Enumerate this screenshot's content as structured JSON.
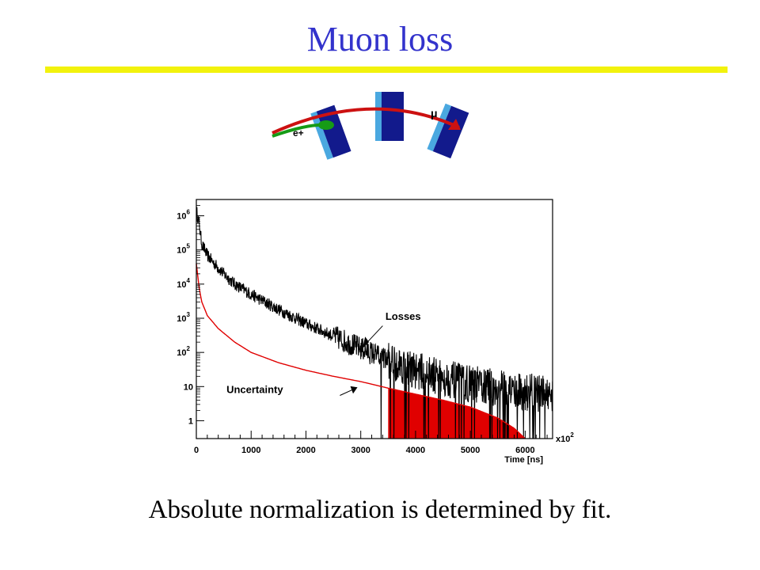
{
  "slide": {
    "title": "Muon loss",
    "caption": "Absolute normalization is determined by fit."
  },
  "colors": {
    "title": "#3333cc",
    "rule": "#f2f20d",
    "losses": "#000000",
    "uncertainty": "#e00000",
    "detector_dark": "#121a8c",
    "detector_light": "#4aa8e0",
    "muon_track": "#cc1111",
    "electron_track": "#169b16"
  },
  "diagram": {
    "muon_label": "μ",
    "electron_label": "e+"
  },
  "chart_data": {
    "type": "line",
    "title": "",
    "xlabel": "Time [ns]",
    "x_multiplier": "x10",
    "x_multiplier_exp": "2",
    "ylabel": "",
    "yscale": "log",
    "xlim": [
      0,
      6500
    ],
    "ylim": [
      0.3,
      3000000
    ],
    "x_ticks": [
      0,
      1000,
      2000,
      3000,
      4000,
      5000,
      6000
    ],
    "y_ticks": [
      {
        "value": 1,
        "base": "1",
        "exp": ""
      },
      {
        "value": 10,
        "base": "10",
        "exp": ""
      },
      {
        "value": 100,
        "base": "10",
        "exp": "2"
      },
      {
        "value": 1000,
        "base": "10",
        "exp": "3"
      },
      {
        "value": 10000,
        "base": "10",
        "exp": "4"
      },
      {
        "value": 100000,
        "base": "10",
        "exp": "5"
      },
      {
        "value": 1000000,
        "base": "10",
        "exp": "6"
      }
    ],
    "grid": false,
    "annotations": [
      {
        "text": "Losses",
        "series": "Losses"
      },
      {
        "text": "Uncertainty",
        "series": "Uncertainty"
      }
    ],
    "series": [
      {
        "name": "Losses",
        "style": "noisy-histogram",
        "x": [
          0,
          50,
          100,
          200,
          300,
          500,
          700,
          1000,
          1500,
          2000,
          2500,
          3000,
          3500,
          4000,
          4500,
          5000,
          5500,
          6000,
          6500
        ],
        "y": [
          1500000,
          600000,
          150000,
          70000,
          45000,
          20000,
          10000,
          5000,
          1800,
          700,
          300,
          130,
          60,
          30,
          18,
          12,
          9,
          7,
          6
        ]
      },
      {
        "name": "Uncertainty",
        "style": "filled-from-3500",
        "x": [
          0,
          50,
          100,
          200,
          400,
          700,
          1000,
          1500,
          2000,
          2500,
          3000,
          3500,
          4000,
          4500,
          5000,
          5500,
          5800,
          6000
        ],
        "y": [
          40000,
          8000,
          3000,
          1200,
          500,
          200,
          100,
          50,
          30,
          20,
          14,
          9,
          6,
          4,
          2.5,
          1.2,
          0.6,
          0.3
        ]
      }
    ]
  }
}
